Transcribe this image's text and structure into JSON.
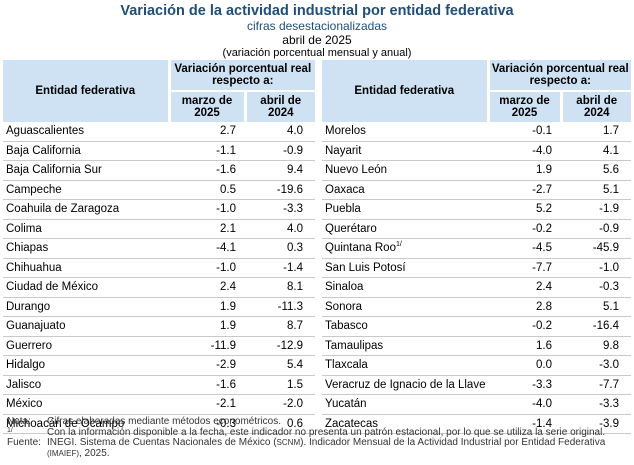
{
  "header": {
    "title": "Variación de la actividad industrial por entidad federativa",
    "subtitle": "cifras desestacionalizadas",
    "date": "abril de 2025",
    "note": "(variación porcentual mensual y anual)"
  },
  "columns": {
    "entity": "Entidad federativa",
    "variation": "Variación porcentual real respecto a:",
    "period1": "marzo de 2025",
    "period2": "abril de 2024"
  },
  "left_rows": [
    {
      "name": "Aguascalientes",
      "v1": "2.7",
      "v2": "4.0"
    },
    {
      "name": "Baja California",
      "v1": "-1.1",
      "v2": "-0.9"
    },
    {
      "name": "Baja California Sur",
      "v1": "-1.6",
      "v2": "9.4"
    },
    {
      "name": "Campeche",
      "v1": "0.5",
      "v2": "-19.6"
    },
    {
      "name": "Coahuila de Zaragoza",
      "v1": "-1.0",
      "v2": "-3.3"
    },
    {
      "name": "Colima",
      "v1": "2.1",
      "v2": "4.0"
    },
    {
      "name": "Chiapas",
      "v1": "-4.1",
      "v2": "0.3"
    },
    {
      "name": "Chihuahua",
      "v1": "-1.0",
      "v2": "-1.4"
    },
    {
      "name": "Ciudad de México",
      "v1": "2.4",
      "v2": "8.1"
    },
    {
      "name": "Durango",
      "v1": "1.9",
      "v2": "-11.3"
    },
    {
      "name": "Guanajuato",
      "v1": "1.9",
      "v2": "8.7"
    },
    {
      "name": "Guerrero",
      "v1": "-11.9",
      "v2": "-12.9"
    },
    {
      "name": "Hidalgo",
      "v1": "-2.9",
      "v2": "5.4"
    },
    {
      "name": "Jalisco",
      "v1": "-1.6",
      "v2": "1.5"
    },
    {
      "name": "México",
      "v1": "-2.1",
      "v2": "-2.0"
    },
    {
      "name": "Michoacán de Ocampo",
      "v1": "-0.3",
      "v2": "0.6"
    }
  ],
  "right_rows": [
    {
      "name": "Morelos",
      "sup": "",
      "v1": "-0.1",
      "v2": "1.7"
    },
    {
      "name": "Nayarit",
      "sup": "",
      "v1": "-4.0",
      "v2": "4.1"
    },
    {
      "name": "Nuevo León",
      "sup": "",
      "v1": "1.9",
      "v2": "5.6"
    },
    {
      "name": "Oaxaca",
      "sup": "",
      "v1": "-2.7",
      "v2": "5.1"
    },
    {
      "name": "Puebla",
      "sup": "",
      "v1": "5.2",
      "v2": "-1.9"
    },
    {
      "name": "Querétaro",
      "sup": "",
      "v1": "-0.2",
      "v2": "-0.9"
    },
    {
      "name": "Quintana Roo",
      "sup": "1/",
      "v1": "-4.5",
      "v2": "-45.9"
    },
    {
      "name": "San Luis Potosí",
      "sup": "",
      "v1": "-7.7",
      "v2": "-1.0"
    },
    {
      "name": "Sinaloa",
      "sup": "",
      "v1": "2.4",
      "v2": "-0.3"
    },
    {
      "name": "Sonora",
      "sup": "",
      "v1": "2.8",
      "v2": "5.1"
    },
    {
      "name": "Tabasco",
      "sup": "",
      "v1": "-0.2",
      "v2": "-16.4"
    },
    {
      "name": "Tamaulipas",
      "sup": "",
      "v1": "1.6",
      "v2": "9.8"
    },
    {
      "name": "Tlaxcala",
      "sup": "",
      "v1": "0.0",
      "v2": "-3.0"
    },
    {
      "name": "Veracruz de Ignacio de la Llave",
      "sup": "",
      "v1": "-3.3",
      "v2": "-7.7"
    },
    {
      "name": "Yucatán",
      "sup": "",
      "v1": "-4.0",
      "v2": "-3.3"
    },
    {
      "name": "Zacatecas",
      "sup": "",
      "v1": "-1.4",
      "v2": "-3.9"
    }
  ],
  "notes": {
    "nota_label": "Nota:",
    "nota_text": "Cifras elaboradas mediante métodos econométricos.",
    "footnote_mark": "1/",
    "footnote_text": "Con la información disponible a la fecha, este indicador no presenta un patrón estacional, por lo que se utiliza la serie original.",
    "fuente_label": "Fuente:",
    "fuente_a": "INEGI. Sistema de Cuentas Nacionales de México (",
    "fuente_scnm": "SCNM",
    "fuente_b": "). Indicador Mensual de la Actividad Industrial por Entidad Federativa",
    "fuente_imaief": "(IMAIEF)",
    "fuente_c": ", 2025."
  }
}
